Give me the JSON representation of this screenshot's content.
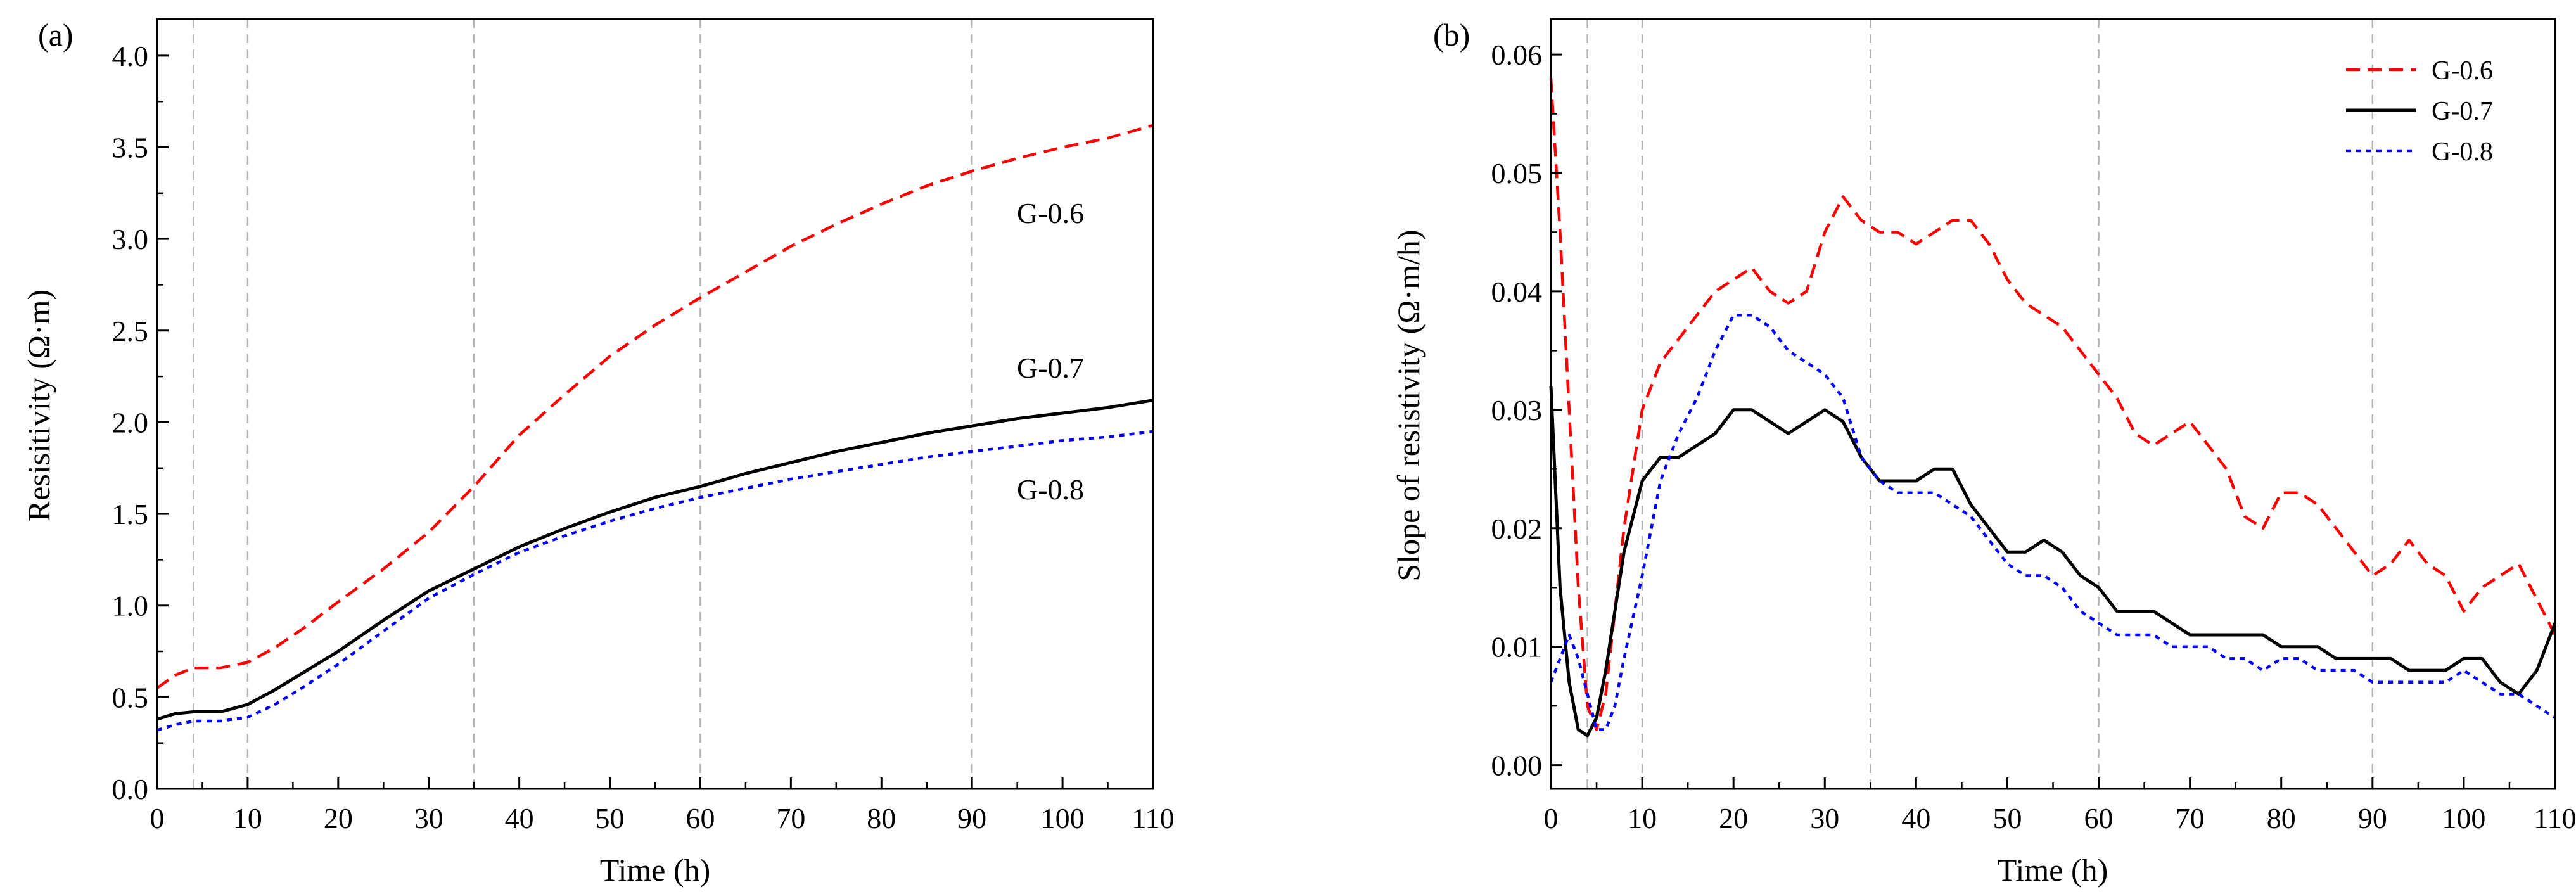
{
  "chart_data": [
    {
      "type": "line",
      "panel_label": "(a)",
      "xlabel": "Time (h)",
      "ylabel": "Resisitivity (Ω·m)",
      "xlim": [
        0,
        110
      ],
      "ylim": [
        0,
        4.2
      ],
      "xticks": [
        "0",
        "10",
        "20",
        "30",
        "40",
        "50",
        "60",
        "70",
        "80",
        "90",
        "100",
        "110"
      ],
      "yticks": [
        "0.0",
        "0.5",
        "1.0",
        "1.5",
        "2.0",
        "2.5",
        "3.0",
        "3.5",
        "4.0"
      ],
      "vlines": [
        4,
        10,
        35,
        60,
        90
      ],
      "series": [
        {
          "name": "G-0.6",
          "color": "#ff0000",
          "dash": "dash",
          "x": [
            0,
            2,
            4,
            7,
            10,
            13,
            16,
            20,
            25,
            30,
            35,
            40,
            45,
            50,
            55,
            60,
            65,
            70,
            75,
            80,
            85,
            90,
            95,
            100,
            105,
            110
          ],
          "y": [
            0.55,
            0.62,
            0.66,
            0.66,
            0.69,
            0.77,
            0.87,
            1.02,
            1.2,
            1.4,
            1.65,
            1.93,
            2.15,
            2.36,
            2.53,
            2.68,
            2.82,
            2.96,
            3.08,
            3.19,
            3.29,
            3.37,
            3.44,
            3.5,
            3.55,
            3.62
          ]
        },
        {
          "name": "G-0.7",
          "color": "#000000",
          "dash": "solid",
          "x": [
            0,
            2,
            4,
            7,
            10,
            13,
            16,
            20,
            25,
            30,
            35,
            40,
            45,
            50,
            55,
            60,
            65,
            70,
            75,
            80,
            85,
            90,
            95,
            100,
            105,
            110
          ],
          "y": [
            0.38,
            0.41,
            0.42,
            0.42,
            0.46,
            0.54,
            0.63,
            0.75,
            0.92,
            1.08,
            1.2,
            1.32,
            1.42,
            1.51,
            1.59,
            1.65,
            1.72,
            1.78,
            1.84,
            1.89,
            1.94,
            1.98,
            2.02,
            2.05,
            2.08,
            2.12
          ]
        },
        {
          "name": "G-0.8",
          "color": "#0000ff",
          "dash": "dot",
          "x": [
            0,
            2,
            4,
            7,
            10,
            13,
            16,
            20,
            25,
            30,
            35,
            40,
            45,
            50,
            55,
            60,
            65,
            70,
            75,
            80,
            85,
            90,
            95,
            100,
            105,
            110
          ],
          "y": [
            0.32,
            0.35,
            0.37,
            0.37,
            0.39,
            0.46,
            0.55,
            0.68,
            0.86,
            1.04,
            1.17,
            1.29,
            1.38,
            1.46,
            1.53,
            1.59,
            1.64,
            1.69,
            1.73,
            1.77,
            1.81,
            1.84,
            1.87,
            1.9,
            1.92,
            1.95
          ]
        }
      ],
      "annotations": [
        "G-0.6",
        "G-0.7",
        "G-0.8"
      ]
    },
    {
      "type": "line",
      "panel_label": "(b)",
      "xlabel": "Time (h)",
      "ylabel": "Slope of resistivity (Ω·m/h)",
      "xlim": [
        0,
        110
      ],
      "ylim": [
        -0.002,
        0.063
      ],
      "xticks": [
        "0",
        "10",
        "20",
        "30",
        "40",
        "50",
        "60",
        "70",
        "80",
        "90",
        "100",
        "110"
      ],
      "yticks": [
        "0.00",
        "0.01",
        "0.02",
        "0.03",
        "0.04",
        "0.05",
        "0.06"
      ],
      "vlines": [
        4,
        10,
        35,
        60,
        90
      ],
      "legend_position": "top-right",
      "series": [
        {
          "name": "G-0.6",
          "color": "#ff0000",
          "dash": "dash",
          "x": [
            0,
            1,
            2,
            3,
            4,
            5,
            6,
            7,
            8,
            10,
            12,
            14,
            16,
            18,
            20,
            22,
            24,
            26,
            28,
            30,
            32,
            34,
            36,
            38,
            40,
            42,
            44,
            46,
            48,
            50,
            52,
            54,
            56,
            58,
            60,
            62,
            64,
            66,
            68,
            70,
            72,
            74,
            76,
            78,
            80,
            82,
            84,
            86,
            88,
            90,
            92,
            94,
            96,
            98,
            100,
            102,
            104,
            106,
            108,
            110
          ],
          "y": [
            0.058,
            0.045,
            0.03,
            0.015,
            0.005,
            0.003,
            0.006,
            0.013,
            0.02,
            0.03,
            0.034,
            0.036,
            0.038,
            0.04,
            0.041,
            0.042,
            0.04,
            0.039,
            0.04,
            0.045,
            0.048,
            0.046,
            0.045,
            0.045,
            0.044,
            0.045,
            0.046,
            0.046,
            0.044,
            0.041,
            0.039,
            0.038,
            0.037,
            0.035,
            0.033,
            0.031,
            0.028,
            0.027,
            0.028,
            0.029,
            0.027,
            0.025,
            0.021,
            0.02,
            0.023,
            0.023,
            0.022,
            0.02,
            0.018,
            0.016,
            0.017,
            0.019,
            0.017,
            0.016,
            0.013,
            0.015,
            0.016,
            0.017,
            0.014,
            0.011
          ]
        },
        {
          "name": "G-0.7",
          "color": "#000000",
          "dash": "solid",
          "x": [
            0,
            1,
            2,
            3,
            4,
            5,
            6,
            7,
            8,
            10,
            12,
            14,
            16,
            18,
            20,
            22,
            24,
            26,
            28,
            30,
            32,
            34,
            36,
            38,
            40,
            42,
            44,
            46,
            48,
            50,
            52,
            54,
            56,
            58,
            60,
            62,
            64,
            66,
            68,
            70,
            72,
            74,
            76,
            78,
            80,
            82,
            84,
            86,
            88,
            90,
            92,
            94,
            96,
            98,
            100,
            102,
            104,
            106,
            108,
            110
          ],
          "y": [
            0.032,
            0.015,
            0.007,
            0.003,
            0.0025,
            0.004,
            0.008,
            0.013,
            0.018,
            0.024,
            0.026,
            0.026,
            0.027,
            0.028,
            0.03,
            0.03,
            0.029,
            0.028,
            0.029,
            0.03,
            0.029,
            0.026,
            0.024,
            0.024,
            0.024,
            0.025,
            0.025,
            0.022,
            0.02,
            0.018,
            0.018,
            0.019,
            0.018,
            0.016,
            0.015,
            0.013,
            0.013,
            0.013,
            0.012,
            0.011,
            0.011,
            0.011,
            0.011,
            0.011,
            0.01,
            0.01,
            0.01,
            0.009,
            0.009,
            0.009,
            0.009,
            0.008,
            0.008,
            0.008,
            0.009,
            0.009,
            0.007,
            0.006,
            0.008,
            0.012
          ]
        },
        {
          "name": "G-0.8",
          "color": "#0000ff",
          "dash": "dot",
          "x": [
            0,
            1,
            2,
            3,
            4,
            5,
            6,
            7,
            8,
            10,
            12,
            14,
            16,
            18,
            20,
            22,
            24,
            26,
            28,
            30,
            32,
            34,
            36,
            38,
            40,
            42,
            44,
            46,
            48,
            50,
            52,
            54,
            56,
            58,
            60,
            62,
            64,
            66,
            68,
            70,
            72,
            74,
            76,
            78,
            80,
            82,
            84,
            86,
            88,
            90,
            92,
            94,
            96,
            98,
            100,
            102,
            104,
            106,
            108,
            110
          ],
          "y": [
            0.007,
            0.009,
            0.011,
            0.009,
            0.006,
            0.003,
            0.003,
            0.005,
            0.009,
            0.016,
            0.024,
            0.028,
            0.031,
            0.035,
            0.038,
            0.038,
            0.037,
            0.035,
            0.034,
            0.033,
            0.031,
            0.026,
            0.024,
            0.023,
            0.023,
            0.023,
            0.022,
            0.021,
            0.019,
            0.017,
            0.016,
            0.016,
            0.015,
            0.013,
            0.012,
            0.011,
            0.011,
            0.011,
            0.01,
            0.01,
            0.01,
            0.009,
            0.009,
            0.008,
            0.009,
            0.009,
            0.008,
            0.008,
            0.008,
            0.007,
            0.007,
            0.007,
            0.007,
            0.007,
            0.008,
            0.007,
            0.006,
            0.006,
            0.005,
            0.004
          ]
        }
      ]
    }
  ]
}
